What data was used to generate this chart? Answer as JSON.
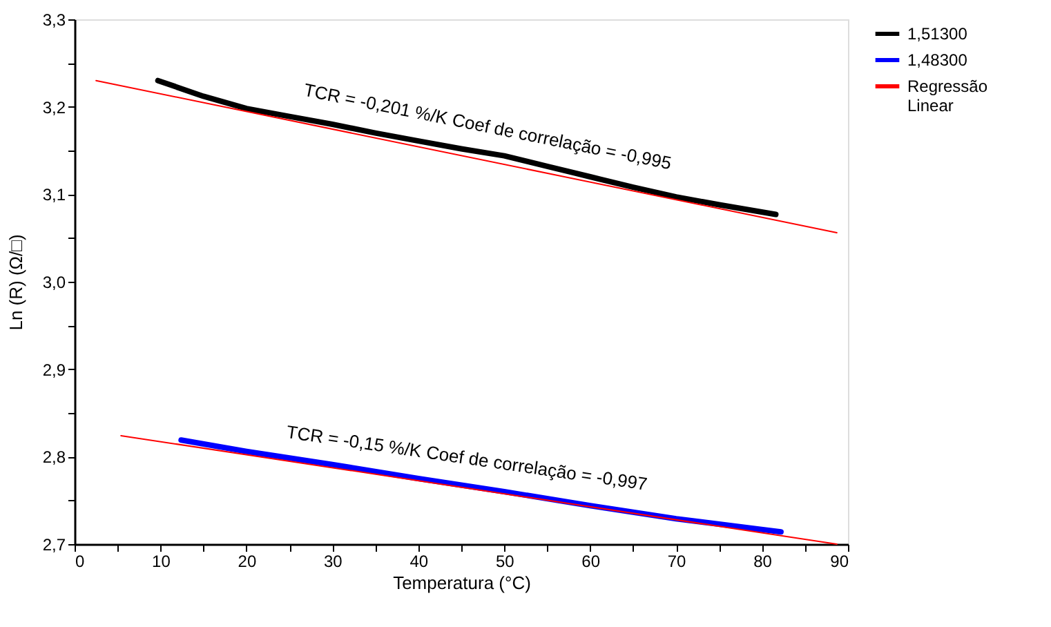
{
  "chart_data": {
    "type": "line",
    "xlabel": "Temperatura (°C)",
    "ylabel": "Ln (R) (Ω/□)",
    "xlim": [
      0,
      90
    ],
    "ylim": [
      2.7,
      3.3
    ],
    "xticks": [
      0,
      {
        "value": 5,
        "label": null
      },
      10,
      {
        "value": 15,
        "label": null
      },
      20,
      {
        "value": 25,
        "label": null
      },
      30,
      {
        "value": 35,
        "label": null
      },
      40,
      {
        "value": 45,
        "label": null
      },
      50,
      {
        "value": 55,
        "label": null
      },
      60,
      {
        "value": 65,
        "label": null
      },
      70,
      {
        "value": 75,
        "label": null
      },
      80,
      {
        "value": 85,
        "label": null
      },
      90
    ],
    "yticks": [
      {
        "value": 2.7,
        "label": "2,7"
      },
      {
        "value": 2.75,
        "label": null
      },
      {
        "value": 2.8,
        "label": "2,8"
      },
      {
        "value": 2.85,
        "label": null
      },
      {
        "value": 2.9,
        "label": "2,9"
      },
      {
        "value": 2.95,
        "label": null
      },
      {
        "value": 3.0,
        "label": "3,0"
      },
      {
        "value": 3.05,
        "label": null
      },
      {
        "value": 3.1,
        "label": "3,1"
      },
      {
        "value": 3.15,
        "label": null
      },
      {
        "value": 3.2,
        "label": "3,2"
      },
      {
        "value": 3.25,
        "label": null
      },
      {
        "value": 3.3,
        "label": "3,3"
      }
    ],
    "grid": false,
    "legend": "top right",
    "line_style": "solid",
    "series": [
      {
        "name": "1,51300",
        "color": "#000000",
        "x": [
          9.7,
          15,
          20,
          25,
          30,
          35,
          40,
          45,
          50,
          55,
          60,
          65,
          70,
          75,
          81.6
        ],
        "values": [
          3.23,
          3.212,
          3.198,
          3.189,
          3.18,
          3.17,
          3.161,
          3.152,
          3.144,
          3.132,
          3.12,
          3.108,
          3.097,
          3.088,
          3.077
        ]
      },
      {
        "name": "1,48300",
        "color": "#0000ff",
        "x": [
          12.4,
          20,
          30,
          40,
          50,
          60,
          70,
          82.2
        ],
        "values": [
          2.819,
          2.806,
          2.791,
          2.775,
          2.76,
          2.744,
          2.729,
          2.714
        ]
      },
      {
        "name": "Regressão Linear",
        "color": "#ff0000",
        "x": [
          2.5,
          88.7
        ],
        "values": [
          3.23,
          3.056
        ]
      },
      {
        "color": "#ff0000",
        "x": [
          5.4,
          88.7
        ],
        "values": [
          2.824,
          2.7
        ]
      }
    ],
    "annotations": [
      "TCR = -0,201 %/K  Coef de correlação = -0,995",
      "TCR = -0,15 %/K Coef de correlação = -0,997"
    ]
  }
}
